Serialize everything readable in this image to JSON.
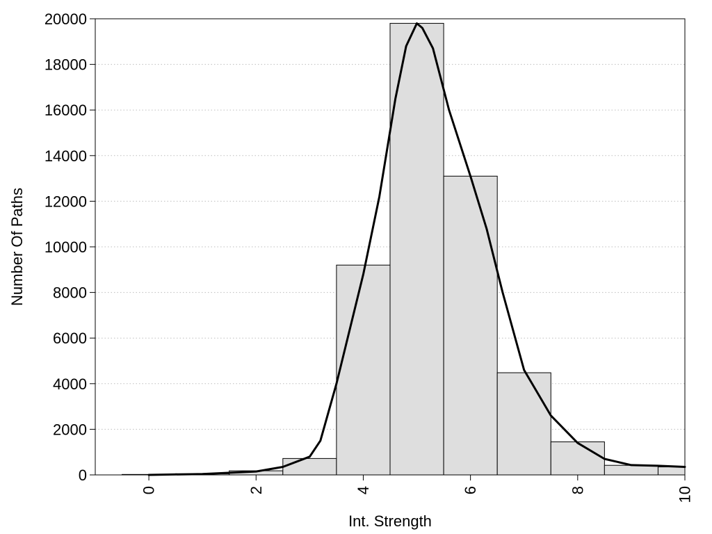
{
  "chart_data": {
    "type": "bar",
    "xlabel": "Int. Strength",
    "ylabel": "Number Of Paths",
    "xlim": [
      -1,
      10
    ],
    "ylim": [
      0,
      20000
    ],
    "xticks": [
      0,
      2,
      4,
      6,
      8,
      10
    ],
    "yticks": [
      0,
      2000,
      4000,
      6000,
      8000,
      10000,
      12000,
      14000,
      16000,
      18000,
      20000
    ],
    "grid": "horizontal dotted",
    "bar_fill": "#dedede",
    "bar_stroke": "#000000",
    "bins": [
      {
        "start": -0.5,
        "end": 0.5,
        "value": 20
      },
      {
        "start": 0.5,
        "end": 1.5,
        "value": 50
      },
      {
        "start": 1.5,
        "end": 2.5,
        "value": 180
      },
      {
        "start": 2.5,
        "end": 3.5,
        "value": 720
      },
      {
        "start": 3.5,
        "end": 4.5,
        "value": 9200
      },
      {
        "start": 4.5,
        "end": 5.5,
        "value": 19800
      },
      {
        "start": 5.5,
        "end": 6.5,
        "value": 13100
      },
      {
        "start": 6.5,
        "end": 7.5,
        "value": 4480
      },
      {
        "start": 7.5,
        "end": 8.5,
        "value": 1450
      },
      {
        "start": 8.5,
        "end": 9.5,
        "value": 420
      },
      {
        "start": 9.5,
        "end": 10.5,
        "value": 350
      }
    ],
    "curve": {
      "x": [
        0,
        1,
        2,
        2.5,
        3,
        3.2,
        3.5,
        4,
        4.3,
        4.6,
        4.8,
        5,
        5.1,
        5.3,
        5.6,
        6,
        6.3,
        6.6,
        7,
        7.5,
        8,
        8.5,
        9,
        9.5,
        10
      ],
      "y": [
        0,
        40,
        150,
        350,
        800,
        1500,
        4000,
        8800,
        12200,
        16500,
        18800,
        19800,
        19600,
        18700,
        16000,
        13100,
        10800,
        8000,
        4600,
        2600,
        1400,
        700,
        430,
        400,
        350
      ]
    }
  }
}
